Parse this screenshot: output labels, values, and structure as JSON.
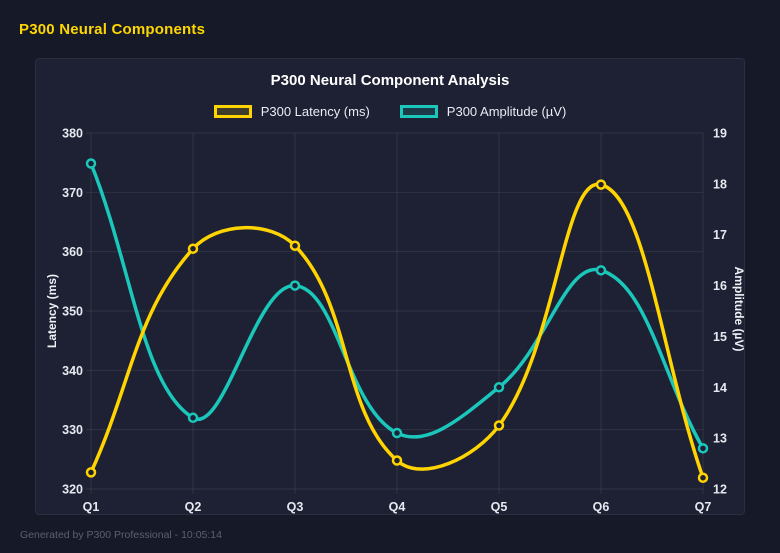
{
  "page": {
    "header_title": "P300 Neural Components",
    "footer": "Generated by P300 Professional - 10:05:14"
  },
  "colors": {
    "background": "#161927",
    "card_background": "#1d2133",
    "header_accent": "#ffd700",
    "latency_line": "#ffd400",
    "amplitude_line": "#1bc7bb",
    "tick_text": "#e6e9f0",
    "gridline": "rgba(255,255,255,0.08)",
    "footer_text": "#596173"
  },
  "chart_data": {
    "type": "line",
    "title": "P300 Neural Component Analysis",
    "categories": [
      "Q1",
      "Q2",
      "Q3",
      "Q4",
      "Q5",
      "Q6",
      "Q7"
    ],
    "series": [
      {
        "name": "P300 Latency (ms)",
        "axis": "left",
        "color": "#ffd400",
        "values": [
          322.8,
          360.5,
          361.0,
          324.8,
          330.7,
          371.3,
          321.9
        ]
      },
      {
        "name": "P300 Amplitude (µV)",
        "axis": "right",
        "color": "#1bc7bb",
        "values": [
          18.4,
          13.4,
          16.0,
          13.1,
          14.0,
          16.3,
          12.8
        ]
      }
    ],
    "left_axis": {
      "label": "Latency (ms)",
      "min": 320,
      "max": 380,
      "ticks": [
        320,
        330,
        340,
        350,
        360,
        370,
        380
      ]
    },
    "right_axis": {
      "label": "Amplitude (µV)",
      "min": 12,
      "max": 19,
      "ticks": [
        12,
        13,
        14,
        15,
        16,
        17,
        18,
        19
      ]
    },
    "grid": true,
    "legend_position": "top",
    "line_tension": 0.4
  }
}
